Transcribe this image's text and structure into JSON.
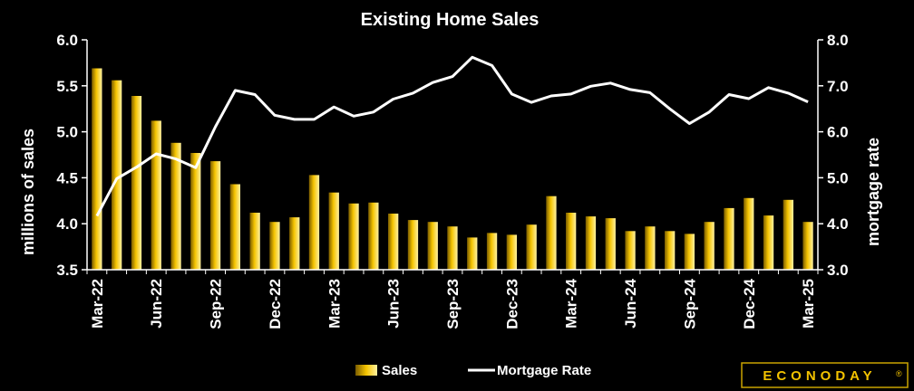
{
  "chart_data": {
    "type": "bar+line",
    "title": "Existing Home Sales",
    "y_left_label": "millions of sales",
    "y_right_label": "mortgage rate",
    "y_left_range": [
      3.5,
      6.0
    ],
    "y_right_range": [
      3.0,
      8.0
    ],
    "y_left_ticks": [
      "3.5",
      "4.0",
      "4.5",
      "5.0",
      "5.5",
      "6.0"
    ],
    "y_right_ticks": [
      "3.0",
      "4.0",
      "5.0",
      "6.0",
      "7.0",
      "8.0"
    ],
    "x_tick_labels": [
      "Mar-22",
      "Jun-22",
      "Sep-22",
      "Dec-22",
      "Mar-23",
      "Jun-23",
      "Sep-23",
      "Dec-23",
      "Mar-24",
      "Jun-24",
      "Sep-24",
      "Dec-24",
      "Mar-25"
    ],
    "categories": [
      "Mar-22",
      "Apr-22",
      "May-22",
      "Jun-22",
      "Jul-22",
      "Aug-22",
      "Sep-22",
      "Oct-22",
      "Nov-22",
      "Dec-22",
      "Jan-23",
      "Feb-23",
      "Mar-23",
      "Apr-23",
      "May-23",
      "Jun-23",
      "Jul-23",
      "Aug-23",
      "Sep-23",
      "Oct-23",
      "Nov-23",
      "Dec-23",
      "Jan-24",
      "Feb-24",
      "Mar-24",
      "Apr-24",
      "May-24",
      "Jun-24",
      "Jul-24",
      "Aug-24",
      "Sep-24",
      "Oct-24",
      "Nov-24",
      "Dec-24",
      "Jan-25",
      "Feb-25",
      "Mar-25"
    ],
    "series": [
      {
        "name": "Sales",
        "type": "bar",
        "axis": "left",
        "color": "#e8b600",
        "values": [
          5.69,
          5.56,
          5.39,
          5.12,
          4.88,
          4.77,
          4.68,
          4.43,
          4.12,
          4.02,
          4.07,
          4.53,
          4.34,
          4.22,
          4.23,
          4.11,
          4.04,
          4.02,
          3.97,
          3.85,
          3.9,
          3.88,
          3.99,
          4.3,
          4.12,
          4.08,
          4.06,
          3.92,
          3.97,
          3.92,
          3.89,
          4.02,
          4.17,
          4.28,
          4.09,
          4.26,
          4.02
        ]
      },
      {
        "name": "Mortgage Rate",
        "type": "line",
        "axis": "right",
        "color": "#ffffff",
        "values": [
          4.17,
          4.98,
          5.23,
          5.52,
          5.41,
          5.22,
          6.11,
          6.9,
          6.81,
          6.36,
          6.27,
          6.27,
          6.54,
          6.34,
          6.43,
          6.71,
          6.84,
          7.07,
          7.2,
          7.62,
          7.44,
          6.82,
          6.64,
          6.78,
          6.82,
          6.99,
          7.06,
          6.92,
          6.85,
          6.5,
          6.18,
          6.43,
          6.81,
          6.72,
          6.96,
          6.84,
          6.65
        ]
      }
    ],
    "legend": {
      "position": "bottom",
      "items": [
        "Sales",
        "Mortgage Rate"
      ]
    },
    "grid": false
  },
  "branding": {
    "logo_text": "ECONODAY",
    "registered_mark": "®",
    "logo_color": "#f2c200"
  }
}
